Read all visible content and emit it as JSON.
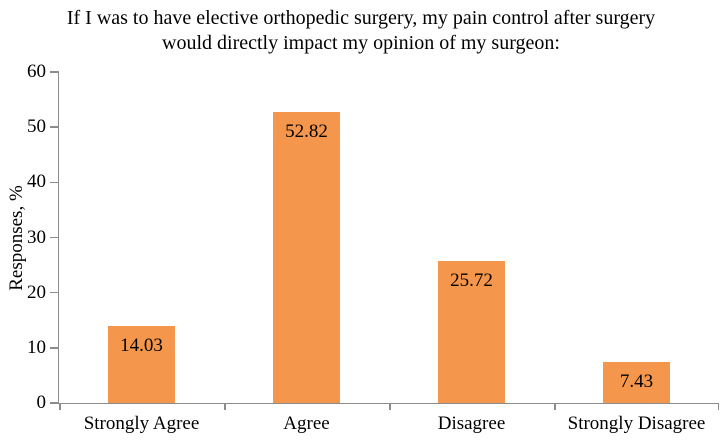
{
  "chart_data": {
    "type": "bar",
    "title": "If I was to have elective orthopedic surgery, my pain control after surgery would directly impact my opinion of my surgeon:",
    "categories": [
      "Strongly Agree",
      "Agree",
      "Disagree",
      "Strongly Disagree"
    ],
    "values": [
      14.03,
      52.82,
      25.72,
      7.43
    ],
    "value_labels": [
      "14.03",
      "52.82",
      "25.72",
      "7.43"
    ],
    "xlabel": "",
    "ylabel": "Responses, %",
    "ylim": [
      0,
      60
    ],
    "yticks": [
      0,
      10,
      20,
      30,
      40,
      50,
      60
    ],
    "grid": false,
    "legend": false,
    "bar_color": "#F4964B",
    "axis_color": "#8C8C8C",
    "text_color": "#000000",
    "background_color": "#FFFFFF"
  }
}
